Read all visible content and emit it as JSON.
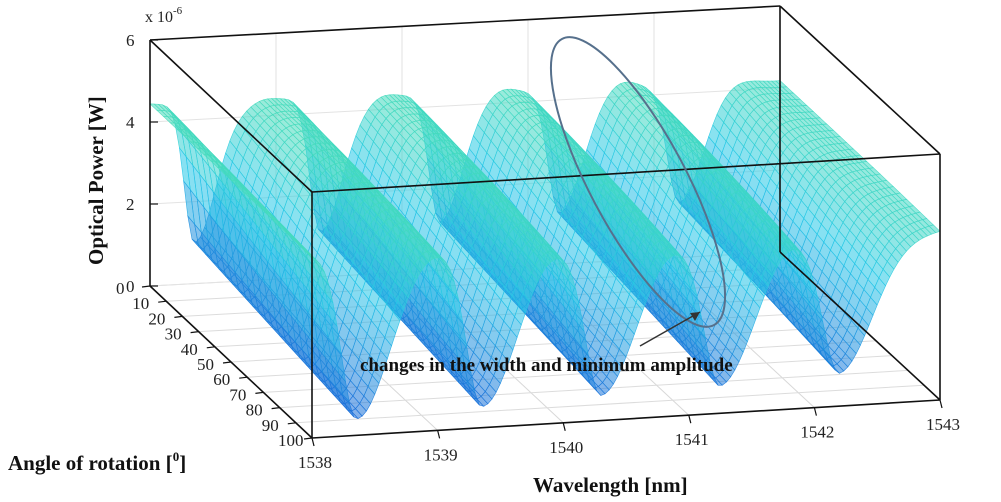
{
  "chart_data": {
    "type": "surface",
    "zlabel": "Optical Power [W]",
    "xlabel": "Wavelength [nm]",
    "ylabel": "Angle of rotation [",
    "ylabel_sup": "0",
    "ylabel_end": "]",
    "z_exponent_base": "x 10",
    "z_exponent_power": "-6",
    "zlim": [
      0,
      6
    ],
    "z_ticks": [
      "0",
      "2",
      "4",
      "6"
    ],
    "xlim": [
      1538,
      1543
    ],
    "x_ticks": [
      "1538",
      "1539",
      "1540",
      "1541",
      "1542",
      "1543"
    ],
    "ylim": [
      0,
      100
    ],
    "y_ticks": [
      "0",
      "10",
      "20",
      "30",
      "40",
      "50",
      "60",
      "70",
      "80",
      "90",
      "100"
    ],
    "baseline_power_uW": 4.3,
    "peak_power_uW": 4.8,
    "dip_minima": [
      {
        "wavelength": 1538.35,
        "min_power": 0.3
      },
      {
        "wavelength": 1539.35,
        "min_power": 0.4
      },
      {
        "wavelength": 1540.3,
        "min_power": 0.5
      },
      {
        "wavelength": 1541.25,
        "min_power": 0.6
      },
      {
        "wavelength": 1542.2,
        "min_power": 0.8
      }
    ],
    "annotation": "changes in the width and minimum amplitude",
    "grid": true,
    "colormap": [
      "#1a5fd6",
      "#25c8e8",
      "#4fe0b0"
    ]
  }
}
